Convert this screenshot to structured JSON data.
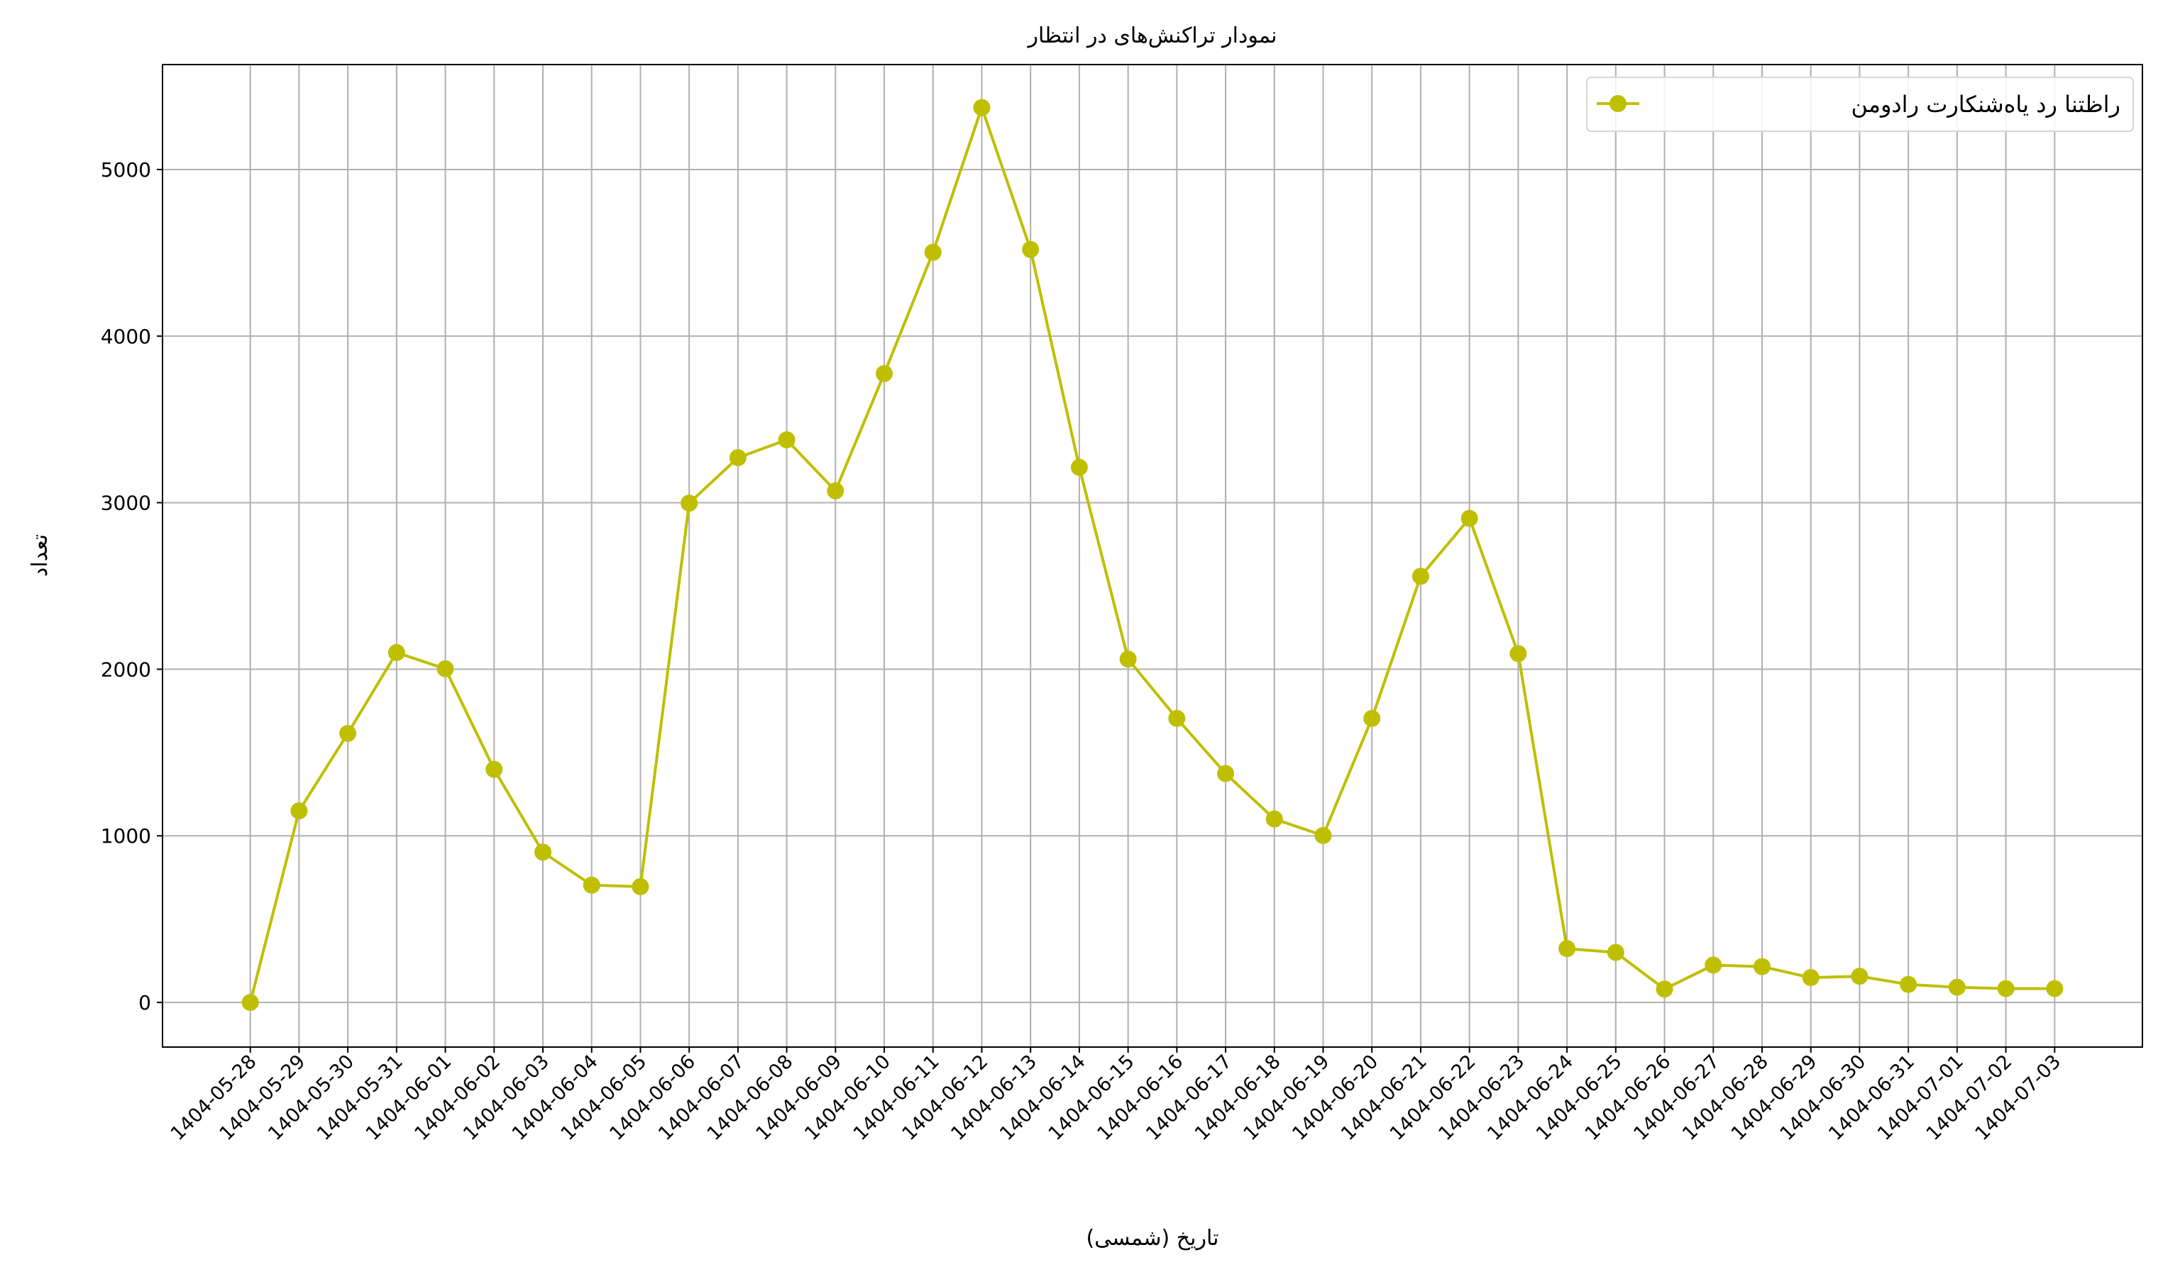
{
  "chart_data": {
    "type": "line",
    "title": "نمودار تراکنش‌های در انتظار",
    "xlabel": "تاریخ (شمسی)",
    "ylabel": "تعداد",
    "ylim": [
      -268,
      5630
    ],
    "yticks": [
      0,
      1000,
      2000,
      3000,
      4000,
      5000
    ],
    "grid": true,
    "legend_position": "top-right",
    "categories": [
      "1404-05-28",
      "1404-05-29",
      "1404-05-30",
      "1404-05-31",
      "1404-06-01",
      "1404-06-02",
      "1404-06-03",
      "1404-06-04",
      "1404-06-05",
      "1404-06-06",
      "1404-06-07",
      "1404-06-08",
      "1404-06-09",
      "1404-06-10",
      "1404-06-11",
      "1404-06-12",
      "1404-06-13",
      "1404-06-14",
      "1404-06-15",
      "1404-06-16",
      "1404-06-17",
      "1404-06-18",
      "1404-06-19",
      "1404-06-20",
      "1404-06-21",
      "1404-06-22",
      "1404-06-23",
      "1404-06-24",
      "1404-06-25",
      "1404-06-26",
      "1404-06-27",
      "1404-06-28",
      "1404-06-29",
      "1404-06-30",
      "1404-06-31",
      "1404-07-01",
      "1404-07-02",
      "1404-07-03"
    ],
    "series": [
      {
        "name": "نمودار تراکنش‌های در انتظار",
        "color": "#bfbf00",
        "values": [
          0,
          1150,
          1615,
          2100,
          2003,
          1399,
          902,
          704,
          695,
          2997,
          3270,
          3377,
          3071,
          3775,
          4503,
          5372,
          4520,
          3212,
          2061,
          1705,
          1374,
          1101,
          1002,
          1705,
          2558,
          2906,
          2094,
          323,
          300,
          80,
          224,
          215,
          149,
          157,
          108,
          91,
          83,
          83
        ]
      }
    ]
  }
}
